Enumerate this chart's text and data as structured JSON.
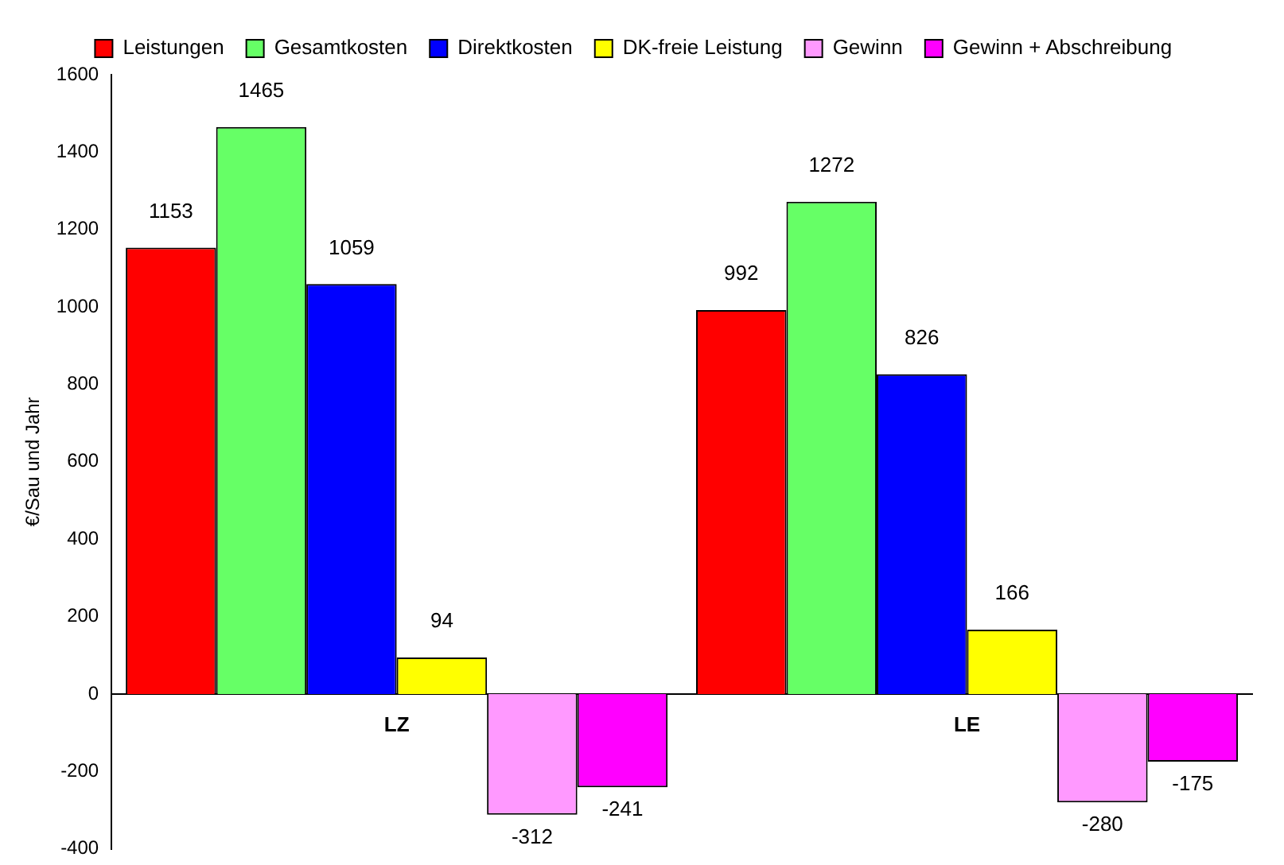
{
  "chart_data": {
    "type": "bar",
    "ylabel": "€/Sau und Jahr",
    "categories": [
      "LZ",
      "LE"
    ],
    "series": [
      {
        "name": "Leistungen",
        "color": "#ff0000",
        "values": [
          1153,
          992
        ]
      },
      {
        "name": "Gesamtkosten",
        "color": "#66ff66",
        "values": [
          1465,
          1272
        ]
      },
      {
        "name": "Direktkosten",
        "color": "#0000ff",
        "values": [
          1059,
          826
        ]
      },
      {
        "name": "DK-freie Leistung",
        "color": "#ffff00",
        "values": [
          94,
          166
        ]
      },
      {
        "name": "Gewinn",
        "color": "#ff99ff",
        "values": [
          -312,
          -280
        ]
      },
      {
        "name": "Gewinn + Abschreibung",
        "color": "#ff00ff",
        "values": [
          -241,
          -175
        ]
      }
    ],
    "ylim": [
      -400,
      1600
    ],
    "yticks": [
      -400,
      -200,
      0,
      200,
      400,
      600,
      800,
      1000,
      1200,
      1400,
      1600
    ],
    "grid": false,
    "legend": "top",
    "data_labels": true
  }
}
